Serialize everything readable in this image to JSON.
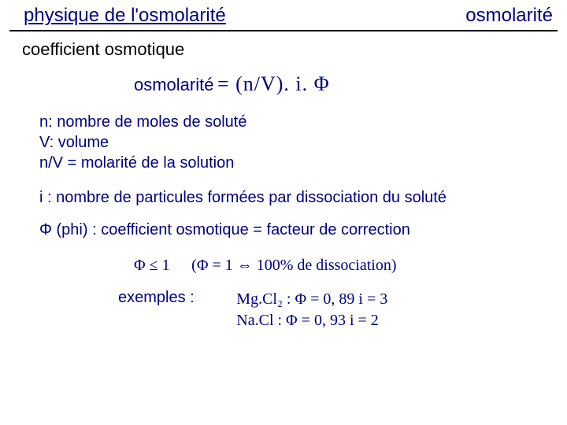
{
  "colors": {
    "accent": "#000080",
    "text": "#000000",
    "background": "#ffffff",
    "rule": "#000000"
  },
  "header": {
    "left": "physique de l'osmolarité",
    "right": "osmolarité"
  },
  "subtitle": "coefficient osmotique",
  "formula": {
    "label": "osmolarité",
    "expr": " = (n/V). i. Φ"
  },
  "defs": {
    "n": "n: nombre de moles de soluté",
    "V": "V: volume",
    "nV": "n/V = molarité de la solution"
  },
  "line_i": "i : nombre de particules formées par dissociation du soluté",
  "line_phi": "Φ (phi) : coefficient osmotique = facteur de correction",
  "phi_leq": "Φ ≤ 1",
  "phi_diss": "(Φ = 1 ⇔ 100% de dissociation)",
  "examples": {
    "label": "exemples :",
    "mgcl2": "Mg.Cl₂ : Φ = 0, 89   i = 3",
    "nacl": "Na.Cl :  Φ = 0, 93  i = 2"
  }
}
